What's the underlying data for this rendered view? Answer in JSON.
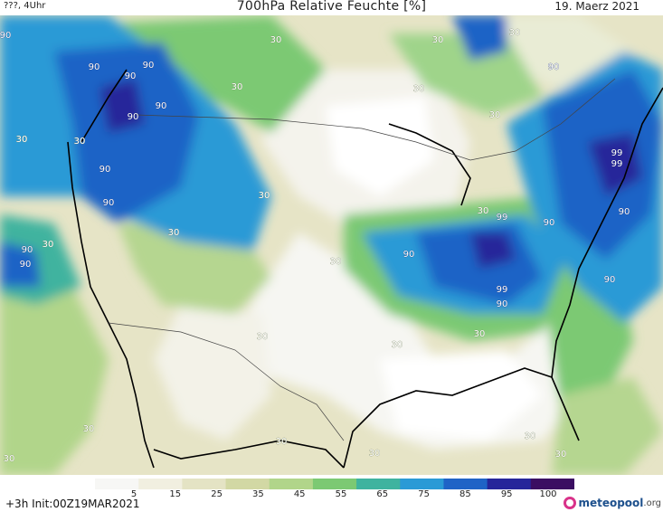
{
  "header": {
    "left": "???, 4Uhr",
    "title": "700hPa Relative Feuchte [%]",
    "date": "19. Maerz 2021"
  },
  "footer": {
    "init": "+3h  Init:00Z19MAR2021",
    "logo_word": "meteopool",
    "logo_tld": ".org"
  },
  "legend": {
    "labels": [
      "5",
      "15",
      "25",
      "35",
      "45",
      "55",
      "65",
      "75",
      "85",
      "95",
      "100"
    ],
    "colors": [
      "#f7f7f5",
      "#f1efe0",
      "#e4e3c4",
      "#d2d8a4",
      "#b1d58a",
      "#7cc973",
      "#3fb39f",
      "#2a9ad6",
      "#1f63c6",
      "#26259a",
      "#3b0e62"
    ]
  },
  "map_labels": [
    "90",
    "90",
    "90",
    "90",
    "90",
    "90",
    "90",
    "90",
    "90",
    "90",
    "99",
    "90",
    "99",
    "99",
    "99",
    "90",
    "90",
    "90",
    "90",
    "90",
    "30",
    "30",
    "30",
    "30",
    "30",
    "30",
    "30",
    "30",
    "30",
    "30",
    "30",
    "30",
    "30",
    "30",
    "30",
    "30",
    "30",
    "30",
    "30",
    "30",
    "30",
    "30"
  ]
}
